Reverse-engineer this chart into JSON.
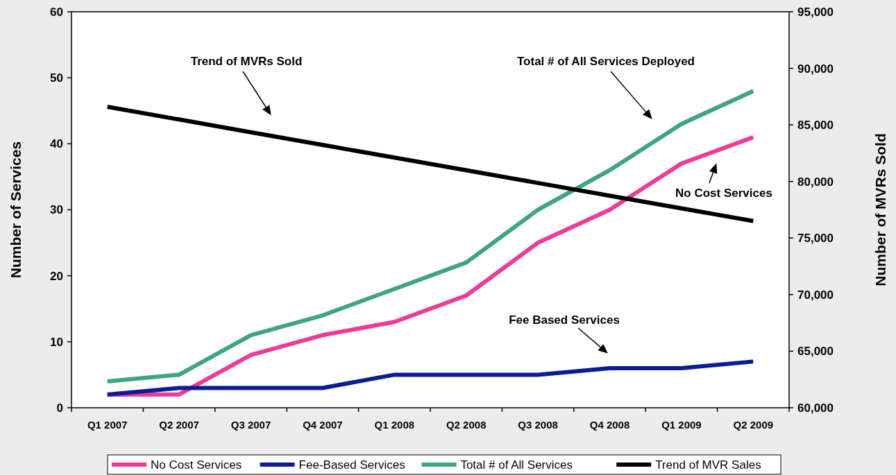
{
  "chart_data": {
    "type": "line",
    "xlabel": null,
    "ylabel": "Number of Services",
    "y2label": "Number of MVRs Sold",
    "categories": [
      "Q1 2007",
      "Q2 2007",
      "Q3 2007",
      "Q4 2007",
      "Q1 2008",
      "Q2 2008",
      "Q3 2008",
      "Q4 2008",
      "Q1 2009",
      "Q2 2009"
    ],
    "series": [
      {
        "name": "No Cost Services",
        "color": "#ee3b96",
        "values": [
          2,
          2,
          8,
          11,
          13,
          17,
          25,
          30,
          37,
          41
        ]
      },
      {
        "name": "Fee-Based Services",
        "color": "#0c1c96",
        "values": [
          2,
          3,
          3,
          3,
          5,
          5,
          5,
          6,
          6,
          7
        ]
      },
      {
        "name": "Total # of All Services",
        "color": "#3fa57a",
        "values": [
          4,
          5,
          11,
          14,
          18,
          22,
          30,
          36,
          43,
          48
        ]
      },
      {
        "name": "Trend of MVR Sales",
        "color": "#000000",
        "axis": "y2",
        "values": [
          86600,
          85480,
          84350,
          83230,
          82110,
          80990,
          79870,
          78740,
          77620,
          76500
        ]
      }
    ],
    "ylim": [
      0,
      60
    ],
    "yticks": [
      0,
      10,
      20,
      30,
      40,
      50,
      60
    ],
    "y2lim": [
      60000,
      95000
    ],
    "y2ticks": [
      {
        "value": 60000,
        "label": "60,000"
      },
      {
        "value": 65000,
        "label": "65,000"
      },
      {
        "value": 70000,
        "label": "70,000"
      },
      {
        "value": 75000,
        "label": "75,000"
      },
      {
        "value": 80000,
        "label": "80,000"
      },
      {
        "value": 85000,
        "label": "85,000"
      },
      {
        "value": 90000,
        "label": "90,000"
      },
      {
        "value": 95000,
        "label": "95,000"
      }
    ],
    "annotations": [
      "Trend of MVRs Sold",
      "Total # of All Services Deployed",
      "No Cost Services",
      "Fee Based Services"
    ],
    "grid": false,
    "legend": "bottom",
    "marker": "none",
    "line_style": "solid"
  }
}
